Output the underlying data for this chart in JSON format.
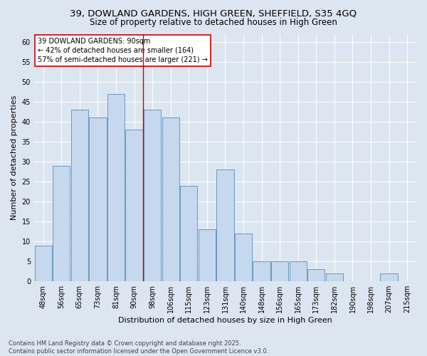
{
  "title1": "39, DOWLAND GARDENS, HIGH GREEN, SHEFFIELD, S35 4GQ",
  "title2": "Size of property relative to detached houses in High Green",
  "xlabel": "Distribution of detached houses by size in High Green",
  "ylabel": "Number of detached properties",
  "categories": [
    "48sqm",
    "56sqm",
    "65sqm",
    "73sqm",
    "81sqm",
    "90sqm",
    "98sqm",
    "106sqm",
    "115sqm",
    "123sqm",
    "131sqm",
    "140sqm",
    "148sqm",
    "156sqm",
    "165sqm",
    "173sqm",
    "182sqm",
    "190sqm",
    "198sqm",
    "207sqm",
    "215sqm"
  ],
  "values": [
    9,
    29,
    43,
    41,
    47,
    38,
    43,
    41,
    24,
    13,
    28,
    12,
    5,
    5,
    5,
    3,
    2,
    0,
    0,
    2,
    0
  ],
  "bar_color": "#c5d8ed",
  "bar_edge_color": "#5b8db8",
  "reference_line_x": 5.5,
  "reference_line_label": "39 DOWLAND GARDENS: 90sqm",
  "annotation_line1": "← 42% of detached houses are smaller (164)",
  "annotation_line2": "57% of semi-detached houses are larger (221) →",
  "annotation_box_color": "#ffffff",
  "annotation_box_edge_color": "#cc0000",
  "ylim": [
    0,
    62
  ],
  "yticks": [
    0,
    5,
    10,
    15,
    20,
    25,
    30,
    35,
    40,
    45,
    50,
    55,
    60
  ],
  "background_color": "#dce6f1",
  "plot_bg_color": "#dce6f1",
  "grid_color": "#ffffff",
  "footer1": "Contains HM Land Registry data © Crown copyright and database right 2025.",
  "footer2": "Contains public sector information licensed under the Open Government Licence v3.0.",
  "title_fontsize": 9.5,
  "subtitle_fontsize": 8.5,
  "tick_fontsize": 7,
  "label_fontsize": 8,
  "annotation_fontsize": 7,
  "footer_fontsize": 6
}
